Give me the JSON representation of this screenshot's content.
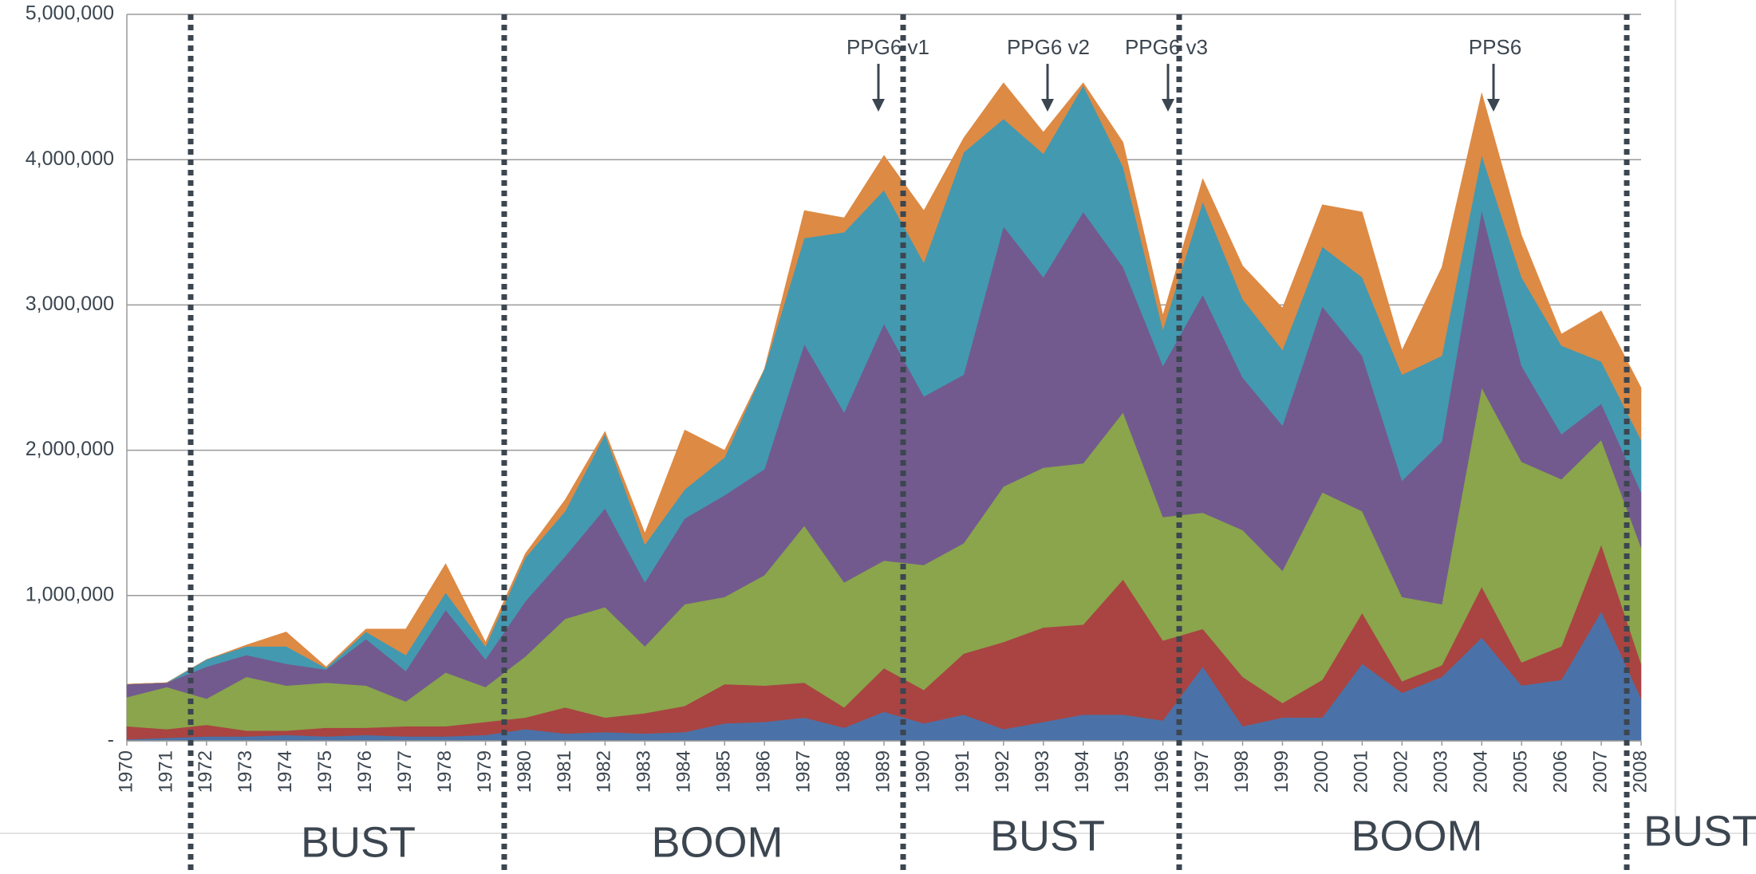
{
  "chart_data": {
    "type": "stacked_area",
    "x": [
      1970,
      1971,
      1972,
      1973,
      1974,
      1975,
      1976,
      1977,
      1978,
      1979,
      1980,
      1981,
      1982,
      1983,
      1984,
      1985,
      1986,
      1987,
      1988,
      1989,
      1990,
      1991,
      1992,
      1993,
      1994,
      1995,
      1996,
      1997,
      1998,
      1999,
      2000,
      2001,
      2002,
      2003,
      2004,
      2005,
      2006,
      2007,
      2008
    ],
    "xlim": [
      1970,
      2008
    ],
    "ylim": [
      0,
      5000000
    ],
    "yticks": [
      {
        "value": 0,
        "label": "-"
      },
      {
        "value": 1000000,
        "label": "1,000,000"
      },
      {
        "value": 2000000,
        "label": "2,000,000"
      },
      {
        "value": 3000000,
        "label": "3,000,000"
      },
      {
        "value": 4000000,
        "label": "4,000,000"
      },
      {
        "value": 5000000,
        "label": "5,000,000"
      }
    ],
    "grid": true,
    "series": [
      {
        "color": "#4a72a8",
        "values": [
          10000,
          20000,
          30000,
          30000,
          40000,
          30000,
          40000,
          30000,
          30000,
          40000,
          80000,
          50000,
          60000,
          50000,
          60000,
          120000,
          130000,
          160000,
          90000,
          200000,
          120000,
          180000,
          80000,
          130000,
          180000,
          180000,
          140000,
          510000,
          100000,
          160000,
          160000,
          530000,
          330000,
          440000,
          710000,
          380000,
          420000,
          890000,
          290000
        ]
      },
      {
        "color": "#a94442",
        "values": [
          90000,
          60000,
          80000,
          40000,
          30000,
          60000,
          50000,
          70000,
          70000,
          90000,
          80000,
          180000,
          100000,
          140000,
          180000,
          270000,
          250000,
          240000,
          140000,
          300000,
          230000,
          420000,
          600000,
          650000,
          620000,
          930000,
          550000,
          260000,
          340000,
          100000,
          260000,
          350000,
          80000,
          80000,
          350000,
          160000,
          230000,
          460000,
          240000
        ]
      },
      {
        "color": "#8aa54b",
        "values": [
          200000,
          290000,
          180000,
          370000,
          310000,
          310000,
          290000,
          170000,
          370000,
          240000,
          420000,
          610000,
          760000,
          460000,
          700000,
          600000,
          760000,
          1080000,
          860000,
          740000,
          860000,
          760000,
          1070000,
          1100000,
          1110000,
          1150000,
          850000,
          800000,
          1010000,
          910000,
          1290000,
          700000,
          580000,
          420000,
          1370000,
          1380000,
          1150000,
          720000,
          800000
        ]
      },
      {
        "color": "#725a8e",
        "values": [
          90000,
          30000,
          220000,
          150000,
          150000,
          90000,
          320000,
          210000,
          430000,
          190000,
          380000,
          430000,
          680000,
          440000,
          590000,
          700000,
          730000,
          1250000,
          1170000,
          1630000,
          1160000,
          1160000,
          1790000,
          1310000,
          1730000,
          1000000,
          1040000,
          1500000,
          1050000,
          1000000,
          1280000,
          1070000,
          800000,
          1120000,
          1220000,
          660000,
          310000,
          250000,
          380000
        ]
      },
      {
        "color": "#4399b0",
        "values": [
          0,
          0,
          50000,
          60000,
          120000,
          10000,
          50000,
          110000,
          120000,
          90000,
          300000,
          310000,
          510000,
          260000,
          200000,
          260000,
          690000,
          730000,
          1240000,
          920000,
          920000,
          1530000,
          740000,
          850000,
          870000,
          690000,
          250000,
          640000,
          540000,
          520000,
          410000,
          540000,
          730000,
          590000,
          380000,
          610000,
          610000,
          290000,
          360000
        ]
      },
      {
        "color": "#dd8a44",
        "values": [
          0,
          0,
          0,
          10000,
          100000,
          10000,
          20000,
          180000,
          200000,
          30000,
          30000,
          80000,
          20000,
          80000,
          410000,
          50000,
          0,
          190000,
          100000,
          240000,
          360000,
          100000,
          250000,
          150000,
          20000,
          170000,
          100000,
          160000,
          230000,
          290000,
          290000,
          450000,
          170000,
          610000,
          430000,
          290000,
          80000,
          350000,
          360000
        ]
      }
    ],
    "annotations": [
      "PPG6  v1",
      "PPG6 v2",
      "PPG6  v3",
      "PPS6"
    ],
    "phases": [
      "BUST",
      "BOOM",
      "BUST",
      "BOOM",
      "BUST"
    ]
  }
}
